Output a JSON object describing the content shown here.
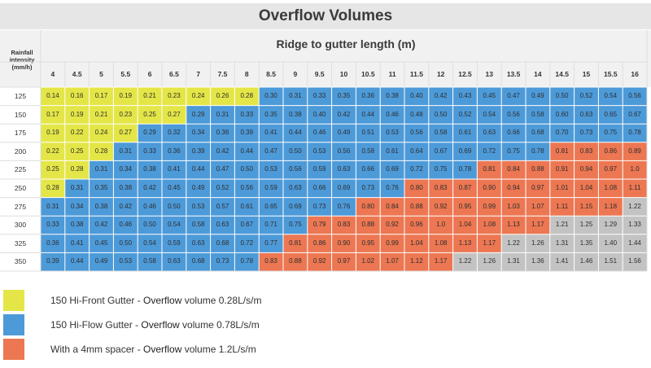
{
  "title": "Overflow Volumes",
  "subtitle": "Ridge to gutter length (m)",
  "row_header_label": "Rainfall intensity (mm/h)",
  "colors": {
    "yellow": "#e4e647",
    "blue": "#4d9ad9",
    "orange": "#ec7752",
    "gray": "#c3c3c3"
  },
  "columns": [
    "4",
    "4.5",
    "5",
    "5.5",
    "6",
    "6.5",
    "7",
    "7.5",
    "8",
    "8.5",
    "9",
    "9.5",
    "10",
    "10.5",
    "11",
    "11.5",
    "12",
    "12.5",
    "13",
    "13.5",
    "14",
    "14.5",
    "15",
    "15.5",
    "16"
  ],
  "rows": [
    {
      "intensity": "125",
      "values": [
        "0.14",
        "0.16",
        "0.17",
        "0.19",
        "0.21",
        "0.23",
        "0.24",
        "0.26",
        "0.28",
        "0.30",
        "0.31",
        "0.33",
        "0.35",
        "0.36",
        "0.38",
        "0.40",
        "0.42",
        "0.43",
        "0.45",
        "0.47",
        "0.49",
        "0.50",
        "0.52",
        "0.54",
        "0.56"
      ],
      "tiers": [
        9,
        0,
        16,
        0
      ]
    },
    {
      "intensity": "150",
      "values": [
        "0.17",
        "0.19",
        "0.21",
        "0.23",
        "0.25",
        "0.27",
        "0.29",
        "0.31",
        "0.33",
        "0.35",
        "0.38",
        "0.40",
        "0.42",
        "0.44",
        "0.46",
        "0.48",
        "0.50",
        "0.52",
        "0.54",
        "0.56",
        "0.58",
        "0.60",
        "0.63",
        "0.65",
        "0.67"
      ],
      "tiers": [
        6,
        0,
        19,
        0
      ]
    },
    {
      "intensity": "175",
      "values": [
        "0.19",
        "0.22",
        "0.24",
        "0.27",
        "0.29",
        "0.32",
        "0.34",
        "0.36",
        "0.39",
        "0.41",
        "0.44",
        "0.46",
        "0.49",
        "0.51",
        "0.53",
        "0.56",
        "0.58",
        "0.61",
        "0.63",
        "0.66",
        "0.68",
        "0.70",
        "0.73",
        "0.75",
        "0.78"
      ],
      "tiers": [
        4,
        0,
        21,
        0
      ]
    },
    {
      "intensity": "200",
      "values": [
        "0.22",
        "0.25",
        "0.28",
        "0.31",
        "0.33",
        "0.36",
        "0.39",
        "0.42",
        "0.44",
        "0.47",
        "0.50",
        "0.53",
        "0.56",
        "0.58",
        "0.61",
        "0.64",
        "0.67",
        "0.69",
        "0.72",
        "0.75",
        "0.78",
        "0.81",
        "0.83",
        "0.86",
        "0.89"
      ],
      "tiers": [
        3,
        0,
        18,
        4
      ]
    },
    {
      "intensity": "225",
      "values": [
        "0.25",
        "0.28",
        "0.31",
        "0.34",
        "0.38",
        "0.41",
        "0.44",
        "0.47",
        "0.50",
        "0.53",
        "0.56",
        "0.59",
        "0.63",
        "0.66",
        "0.69",
        "0.72",
        "0.75",
        "0.78",
        "0.81",
        "0.84",
        "0.88",
        "0.91",
        "0.94",
        "0.97",
        "1.0"
      ],
      "tiers": [
        2,
        0,
        16,
        7
      ]
    },
    {
      "intensity": "250",
      "values": [
        "0.28",
        "0.31",
        "0.35",
        "0.38",
        "0.42",
        "0.45",
        "0.49",
        "0.52",
        "0.56",
        "0.59",
        "0.63",
        "0.66",
        "0.69",
        "0.73",
        "0.76",
        "0.80",
        "0.83",
        "0.87",
        "0.90",
        "0.94",
        "0.97",
        "1.01",
        "1.04",
        "1.08",
        "1.11"
      ],
      "tiers": [
        1,
        0,
        14,
        10
      ]
    },
    {
      "intensity": "275",
      "values": [
        "0.31",
        "0.34",
        "0.38",
        "0.42",
        "0.46",
        "0.50",
        "0.53",
        "0.57",
        "0.61",
        "0.65",
        "0.69",
        "0.73",
        "0.76",
        "0.80",
        "0.84",
        "0.88",
        "0.92",
        "0.95",
        "0.99",
        "1.03",
        "1.07",
        "1.11",
        "1.15",
        "1.18",
        "1.22"
      ],
      "tiers": [
        0,
        0,
        13,
        11,
        1
      ]
    },
    {
      "intensity": "300",
      "values": [
        "0.33",
        "0.38",
        "0.42",
        "0.46",
        "0.50",
        "0.54",
        "0.58",
        "0.63",
        "0.67",
        "0.71",
        "0.75",
        "0.79",
        "0.83",
        "0.88",
        "0.92",
        "0.96",
        "1.0",
        "1.04",
        "1.08",
        "1.13",
        "1.17",
        "1.21",
        "1.25",
        "1.29",
        "1.33"
      ],
      "tiers": [
        0,
        0,
        11,
        10,
        4
      ]
    },
    {
      "intensity": "325",
      "values": [
        "0.36",
        "0.41",
        "0.45",
        "0.50",
        "0.54",
        "0.59",
        "0.63",
        "0.68",
        "0.72",
        "0.77",
        "0.81",
        "0.86",
        "0.90",
        "0.95",
        "0.99",
        "1.04",
        "1.08",
        "1.13",
        "1.17",
        "1.22",
        "1.26",
        "1.31",
        "1.35",
        "1.40",
        "1.44"
      ],
      "tiers": [
        0,
        0,
        10,
        9,
        6
      ]
    },
    {
      "intensity": "350",
      "values": [
        "0.39",
        "0.44",
        "0.49",
        "0.53",
        "0.58",
        "0.63",
        "0.68",
        "0.73",
        "0.78",
        "0.83",
        "0.88",
        "0.92",
        "0.97",
        "1.02",
        "1.07",
        "1.12",
        "1.17",
        "1.22",
        "1.26",
        "1.31",
        "1.36",
        "1.41",
        "1.46",
        "1.51",
        "1.56"
      ],
      "tiers": [
        0,
        0,
        9,
        8,
        8
      ]
    }
  ],
  "legend": [
    {
      "color_key": "yellow",
      "prefix": "150 Hi-Front Gutter - ",
      "emph": "Overflow",
      "suffix": " volume 0.28L/s/m"
    },
    {
      "color_key": "blue",
      "prefix": "150 Hi-Flow Gutter - ",
      "emph": "Overflow",
      "suffix": " volume 0.78L/s/m"
    },
    {
      "color_key": "orange",
      "prefix": "With a 4mm spacer - ",
      "emph": "Overflow",
      "suffix": " volume 1.2L/s/m"
    }
  ]
}
